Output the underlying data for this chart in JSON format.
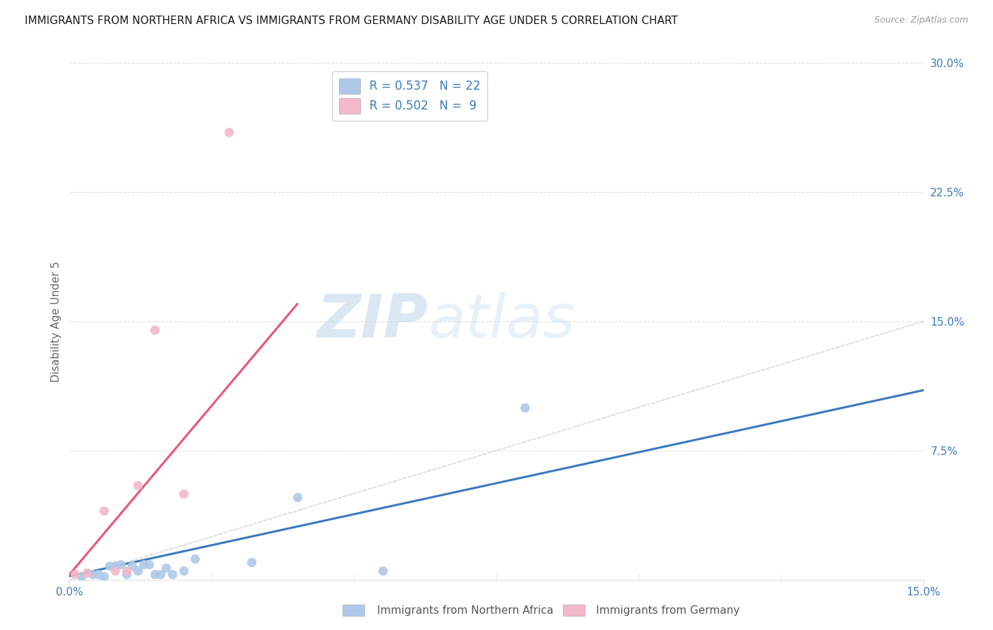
{
  "title": "IMMIGRANTS FROM NORTHERN AFRICA VS IMMIGRANTS FROM GERMANY DISABILITY AGE UNDER 5 CORRELATION CHART",
  "source_text": "Source: ZipAtlas.com",
  "xlabel_label": "Immigrants from Northern Africa",
  "ylabel_label": "Disability Age Under 5",
  "xlim": [
    0.0,
    0.15
  ],
  "ylim": [
    0.0,
    0.3
  ],
  "blue_R": "0.537",
  "blue_N": "22",
  "pink_R": "0.502",
  "pink_N": "9",
  "blue_color": "#aec9e8",
  "pink_color": "#f4b8c8",
  "blue_line_color": "#3a7abf",
  "pink_line_color": "#e8547a",
  "diag_line_color": "#c8c8c8",
  "grid_color": "#e0e0e0",
  "title_color": "#1a1a1a",
  "legend_R_color": "#3a7abf",
  "axis_tick_color": "#3a7abf",
  "watermark_zip": "ZIP",
  "watermark_atlas": "atlas",
  "blue_scatter_x": [
    0.002,
    0.004,
    0.005,
    0.006,
    0.007,
    0.008,
    0.009,
    0.01,
    0.011,
    0.012,
    0.013,
    0.014,
    0.015,
    0.016,
    0.017,
    0.018,
    0.02,
    0.022,
    0.032,
    0.04,
    0.055,
    0.08
  ],
  "blue_scatter_y": [
    0.002,
    0.003,
    0.003,
    0.002,
    0.008,
    0.008,
    0.009,
    0.003,
    0.008,
    0.005,
    0.009,
    0.009,
    0.003,
    0.003,
    0.007,
    0.003,
    0.005,
    0.012,
    0.01,
    0.048,
    0.005,
    0.1
  ],
  "pink_scatter_x": [
    0.001,
    0.003,
    0.006,
    0.008,
    0.01,
    0.012,
    0.015,
    0.02,
    0.028
  ],
  "pink_scatter_y": [
    0.003,
    0.004,
    0.04,
    0.005,
    0.005,
    0.055,
    0.145,
    0.05,
    0.26
  ],
  "blue_line_x": [
    0.0,
    0.15
  ],
  "blue_line_y": [
    0.002,
    0.11
  ],
  "pink_line_x": [
    0.0,
    0.04
  ],
  "pink_line_y": [
    0.003,
    0.16
  ]
}
